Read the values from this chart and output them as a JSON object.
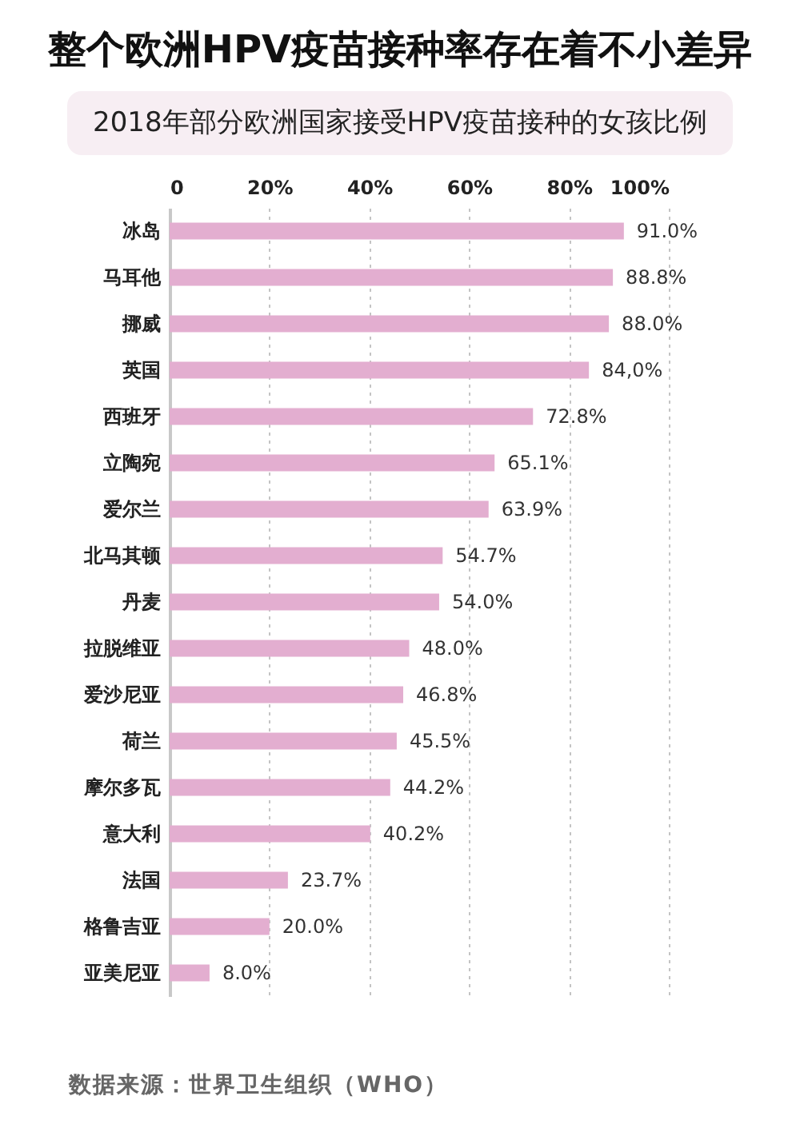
{
  "chart_data": {
    "type": "bar",
    "orientation": "horizontal",
    "title": "整个欧洲HPV疫苗接种率存在着不小差异",
    "subtitle": "2018年部分欧洲国家接受HPV疫苗接种的女孩比例",
    "categories": [
      "冰岛",
      "马耳他",
      "挪威",
      "英国",
      "西班牙",
      "立陶宛",
      "爱尔兰",
      "北马其顿",
      "丹麦",
      "拉脱维亚",
      "爱沙尼亚",
      "荷兰",
      "摩尔多瓦",
      "意大利",
      "法国",
      "格鲁吉亚",
      "亚美尼亚"
    ],
    "values": [
      91.0,
      88.8,
      88.0,
      84.0,
      72.8,
      65.1,
      63.9,
      54.7,
      54.0,
      48.0,
      46.8,
      45.5,
      44.2,
      40.2,
      23.7,
      20.0,
      8.0
    ],
    "value_labels": [
      "91.0%",
      "88.8%",
      "88.0%",
      "84,0%",
      "72.8%",
      "65.1%",
      "63.9%",
      "54.7%",
      "54.0%",
      "48.0%",
      "46.8%",
      "45.5%",
      "44.2%",
      "40.2%",
      "23.7%",
      "20.0%",
      "8.0%"
    ],
    "color": "#e3aed0",
    "xlim": [
      0,
      100
    ],
    "xticks": [
      0,
      {
        "value": 20,
        "label": "20%"
      },
      {
        "value": 40,
        "label": "40%"
      },
      {
        "value": 60,
        "label": "60%"
      },
      {
        "value": 80,
        "label": "80%"
      },
      {
        "value": 100,
        "label": "100%"
      }
    ],
    "grid": "x",
    "annotations": [
      "数据来源：世界卫生组织（WHO）"
    ]
  }
}
